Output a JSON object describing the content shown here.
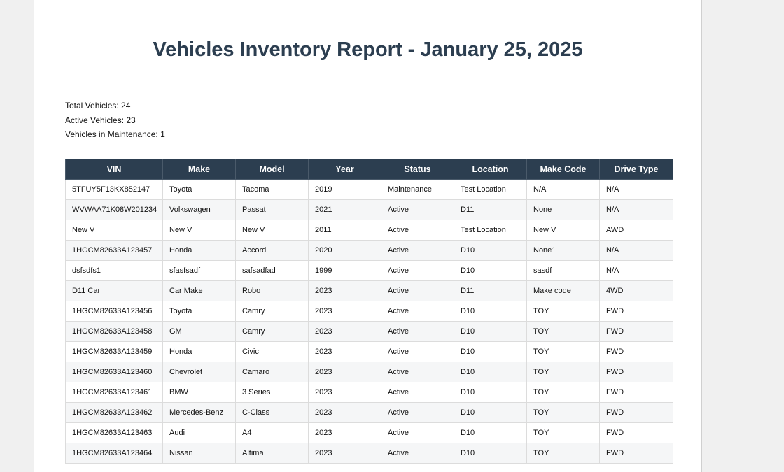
{
  "report": {
    "title": "Vehicles Inventory Report - January 25, 2025",
    "summary": {
      "total": "Total Vehicles: 24",
      "active": "Active Vehicles: 23",
      "maintenance": "Vehicles in Maintenance: 1"
    }
  },
  "table": {
    "columns": [
      "VIN",
      "Make",
      "Model",
      "Year",
      "Status",
      "Location",
      "Make Code",
      "Drive Type"
    ],
    "rows": [
      [
        "5TFUY5F13KX852147",
        "Toyota",
        "Tacoma",
        "2019",
        "Maintenance",
        "Test Location",
        "N/A",
        "N/A"
      ],
      [
        "WVWAA71K08W201234",
        "Volkswagen",
        "Passat",
        "2021",
        "Active",
        "D11",
        "None",
        "N/A"
      ],
      [
        "New V",
        "New V",
        "New V",
        "2011",
        "Active",
        "Test Location",
        "New V",
        "AWD"
      ],
      [
        "1HGCM82633A123457",
        "Honda",
        "Accord",
        "2020",
        "Active",
        "D10",
        "None1",
        "N/A"
      ],
      [
        "dsfsdfs1",
        "sfasfsadf",
        "safsadfad",
        "1999",
        "Active",
        "D10",
        "sasdf",
        "N/A"
      ],
      [
        "D11 Car",
        "Car Make",
        "Robo",
        "2023",
        "Active",
        "D11",
        "Make code",
        "4WD"
      ],
      [
        "1HGCM82633A123456",
        "Toyota",
        "Camry",
        "2023",
        "Active",
        "D10",
        "TOY",
        "FWD"
      ],
      [
        "1HGCM82633A123458",
        "GM",
        "Camry",
        "2023",
        "Active",
        "D10",
        "TOY",
        "FWD"
      ],
      [
        "1HGCM82633A123459",
        "Honda",
        "Civic",
        "2023",
        "Active",
        "D10",
        "TOY",
        "FWD"
      ],
      [
        "1HGCM82633A123460",
        "Chevrolet",
        "Camaro",
        "2023",
        "Active",
        "D10",
        "TOY",
        "FWD"
      ],
      [
        "1HGCM82633A123461",
        "BMW",
        "3 Series",
        "2023",
        "Active",
        "D10",
        "TOY",
        "FWD"
      ],
      [
        "1HGCM82633A123462",
        "Mercedes-Benz",
        "C-Class",
        "2023",
        "Active",
        "D10",
        "TOY",
        "FWD"
      ],
      [
        "1HGCM82633A123463",
        "Audi",
        "A4",
        "2023",
        "Active",
        "D10",
        "TOY",
        "FWD"
      ],
      [
        "1HGCM82633A123464",
        "Nissan",
        "Altima",
        "2023",
        "Active",
        "D10",
        "TOY",
        "FWD"
      ]
    ]
  }
}
